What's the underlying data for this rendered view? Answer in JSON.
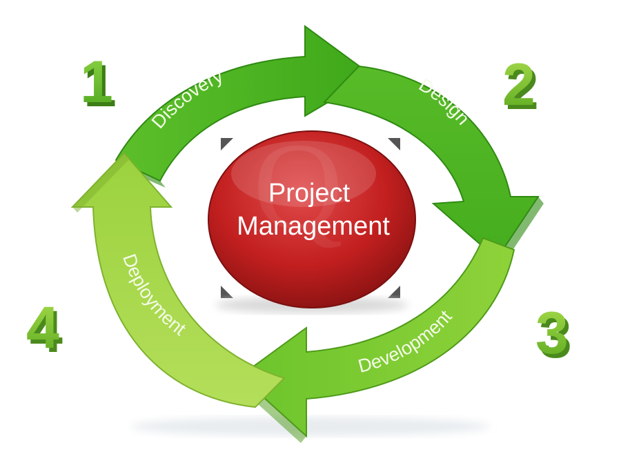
{
  "center": {
    "line1": "Project",
    "line2": "Management"
  },
  "steps": [
    {
      "number": "1",
      "label": "Discovery"
    },
    {
      "number": "2",
      "label": "Design"
    },
    {
      "number": "3",
      "label": "Development"
    },
    {
      "number": "4",
      "label": "Deployment"
    }
  ],
  "colors": {
    "green_dark": "#3ea81a",
    "green_mid": "#66c22a",
    "green_light": "#9fd63c",
    "green_pale": "#c4e46a",
    "ball_red": "#c82222",
    "ball_dark": "#7a0f0f",
    "corner_marker": "#555555"
  }
}
